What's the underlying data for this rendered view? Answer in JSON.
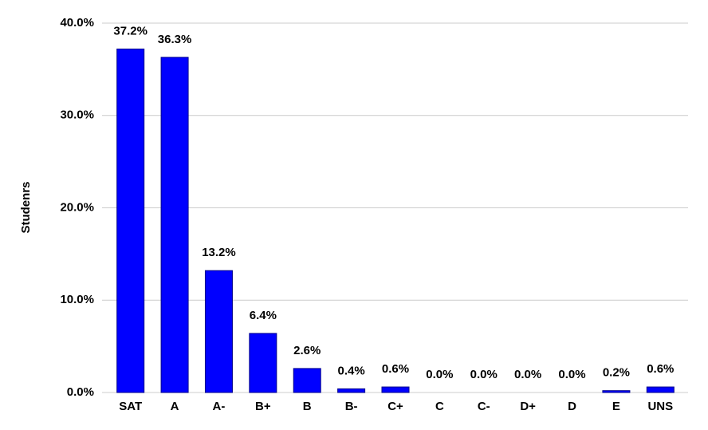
{
  "chart_data": {
    "type": "bar",
    "y_label": "Studenrs",
    "categories": [
      "SAT",
      "A",
      "A-",
      "B+",
      "B",
      "B-",
      "C+",
      "C",
      "C-",
      "D+",
      "D",
      "E",
      "UNS"
    ],
    "values": [
      37.2,
      36.3,
      13.2,
      6.4,
      2.6,
      0.4,
      0.6,
      0.0,
      0.0,
      0.0,
      0.0,
      0.2,
      0.6
    ],
    "value_labels": [
      "37.2%",
      "36.3%",
      "13.2%",
      "6.4%",
      "2.6%",
      "0.4%",
      "0.6%",
      "0.0%",
      "0.0%",
      "0.0%",
      "0.0%",
      "0.2%",
      "0.6%"
    ],
    "color": "#0000ff",
    "ylim": [
      0,
      40
    ],
    "yticks": [
      {
        "value": 0,
        "label": "0.0%"
      },
      {
        "value": 10,
        "label": "10.0%"
      },
      {
        "value": 20,
        "label": "20.0%"
      },
      {
        "value": 30,
        "label": "30.0%"
      },
      {
        "value": 40,
        "label": "40.0%"
      }
    ],
    "grid": true
  }
}
